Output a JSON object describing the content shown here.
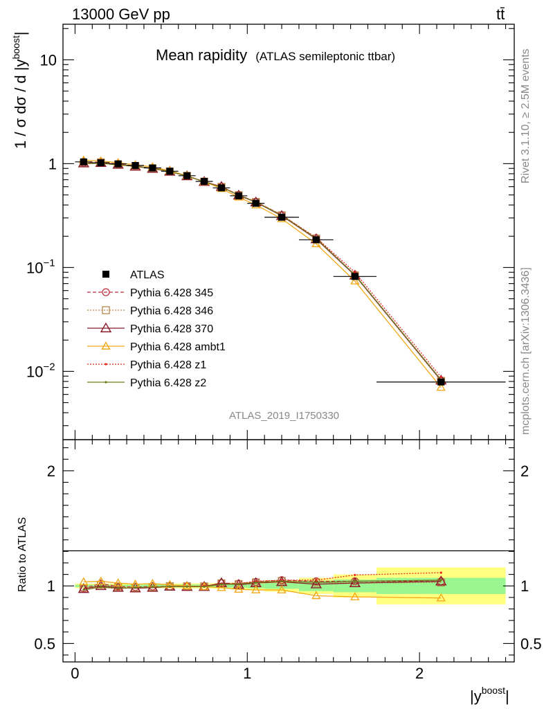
{
  "header": {
    "left": "13000 GeV pp",
    "right": "tt̄"
  },
  "side": {
    "rivet": "Rivet 3.1.10, ≥ 2.5M events",
    "mcplots": "mcplots.cern.ch [arXiv:1306.3436]"
  },
  "chart_data": [
    {
      "type": "line",
      "title": "Mean rapidity",
      "subtitle": "(ATLAS semileptonic ttbar)",
      "analysis_id": "ATLAS_2019_I1750330",
      "ylabel": "1 / σ dσ / d |y^boost|",
      "ylabel_parts": {
        "pre": "1 / σ dσ / d |y",
        "sup": "boost",
        "post": "|"
      },
      "xlabel": "",
      "xlim": [
        -0.07,
        2.55
      ],
      "ylim": [
        0.0022,
        22
      ],
      "yscale": "log",
      "yticks": [
        {
          "v": 10,
          "label": "10"
        },
        {
          "v": 1,
          "label": "1"
        },
        {
          "v": 0.1,
          "label": "10",
          "exp": "−1"
        },
        {
          "v": 0.01,
          "label": "10",
          "exp": "−2"
        }
      ],
      "legend_position": "middle-left",
      "x": [
        0.05,
        0.15,
        0.25,
        0.35,
        0.45,
        0.55,
        0.65,
        0.75,
        0.85,
        0.95,
        1.05,
        1.2,
        1.4,
        1.625,
        2.125
      ],
      "x_edges": [
        0,
        0.1,
        0.2,
        0.3,
        0.4,
        0.5,
        0.6,
        0.7,
        0.8,
        0.9,
        1.0,
        1.1,
        1.3,
        1.5,
        1.75,
        2.5
      ],
      "series": [
        {
          "name": "ATLAS",
          "style": "data",
          "color": "#000000",
          "values": [
            1.04,
            1.02,
            0.995,
            0.96,
            0.91,
            0.845,
            0.765,
            0.675,
            0.585,
            0.49,
            0.415,
            0.305,
            0.185,
            0.082,
            0.0079
          ]
        },
        {
          "name": "Pythia 6.428 345",
          "style": "circle-dashed",
          "color": "#c12e3d",
          "values": [
            1.02,
            1.04,
            0.99,
            0.95,
            0.905,
            0.84,
            0.762,
            0.67,
            0.6,
            0.5,
            0.43,
            0.32,
            0.192,
            0.085,
            0.0082
          ]
        },
        {
          "name": "Pythia 6.428 346",
          "style": "square-dotted",
          "color": "#b8864a",
          "values": [
            1.01,
            1.03,
            0.985,
            0.945,
            0.9,
            0.843,
            0.763,
            0.672,
            0.598,
            0.498,
            0.428,
            0.318,
            0.19,
            0.084,
            0.0081
          ]
        },
        {
          "name": "Pythia 6.428 370",
          "style": "triangle-solid",
          "color": "#8b1a2a",
          "values": [
            1.01,
            1.02,
            0.98,
            0.94,
            0.895,
            0.84,
            0.76,
            0.67,
            0.6,
            0.495,
            0.425,
            0.315,
            0.188,
            0.084,
            0.0082
          ]
        },
        {
          "name": "Pythia 6.428 ambt1",
          "style": "triangle-open-yellow",
          "color": "#f2a818",
          "values": [
            1.08,
            1.06,
            1.02,
            0.975,
            0.93,
            0.855,
            0.765,
            0.67,
            0.575,
            0.475,
            0.4,
            0.295,
            0.169,
            0.074,
            0.007
          ]
        },
        {
          "name": "Pythia 6.428 z1",
          "style": "dot-dotted",
          "color": "#e8251c",
          "values": [
            1.0,
            1.01,
            0.97,
            0.945,
            0.9,
            0.84,
            0.76,
            0.675,
            0.595,
            0.5,
            0.43,
            0.32,
            0.194,
            0.09,
            0.0088
          ]
        },
        {
          "name": "Pythia 6.428 z2",
          "style": "dot-solid",
          "color": "#6e7a1e",
          "values": [
            1.0,
            1.01,
            0.975,
            0.945,
            0.9,
            0.84,
            0.76,
            0.67,
            0.593,
            0.498,
            0.427,
            0.318,
            0.19,
            0.085,
            0.0083
          ]
        }
      ]
    },
    {
      "type": "line",
      "ylabel": "Ratio to ATLAS",
      "xlabel": "|y^boost|",
      "xlabel_parts": {
        "pre": "|y",
        "sup": "boost",
        "post": "|"
      },
      "xlim": [
        -0.07,
        2.55
      ],
      "ylim": [
        0.34,
        2.27
      ],
      "yticks_left": [
        {
          "v": 2,
          "label": "2"
        },
        {
          "v": 1,
          "label": "1"
        },
        {
          "v": 0.5,
          "label": "0.5"
        }
      ],
      "yticks_right": [
        {
          "v": 2,
          "label": "2"
        },
        {
          "v": 1,
          "label": "1"
        },
        {
          "v": 0.5,
          "label": "0.5"
        }
      ],
      "xticks": [
        {
          "v": 0,
          "label": "0"
        },
        {
          "v": 1,
          "label": "1"
        },
        {
          "v": 2,
          "label": "2"
        }
      ],
      "x": [
        0.05,
        0.15,
        0.25,
        0.35,
        0.45,
        0.55,
        0.65,
        0.75,
        0.85,
        0.95,
        1.05,
        1.2,
        1.4,
        1.625,
        2.125
      ],
      "bands": {
        "stat_green": [
          0.01,
          0.01,
          0.01,
          0.01,
          0.012,
          0.012,
          0.012,
          0.012,
          0.015,
          0.015,
          0.02,
          0.025,
          0.045,
          0.055,
          0.07
        ],
        "total_yellow": [
          0.02,
          0.02,
          0.02,
          0.02,
          0.02,
          0.02,
          0.022,
          0.022,
          0.025,
          0.03,
          0.035,
          0.05,
          0.07,
          0.1,
          0.16
        ]
      },
      "series": [
        {
          "name": "Pythia 6.428 345",
          "style": "circle-dashed",
          "color": "#c12e3d",
          "values": [
            0.98,
            1.02,
            0.995,
            0.99,
            0.995,
            0.995,
            0.995,
            0.995,
            1.025,
            1.02,
            1.035,
            1.05,
            1.04,
            1.04,
            1.04
          ]
        },
        {
          "name": "Pythia 6.428 346",
          "style": "square-dotted",
          "color": "#b8864a",
          "values": [
            0.975,
            1.01,
            0.99,
            0.985,
            0.99,
            0.998,
            0.997,
            0.996,
            1.022,
            1.016,
            1.031,
            1.043,
            1.03,
            1.025,
            1.03
          ]
        },
        {
          "name": "Pythia 6.428 370",
          "style": "triangle-solid",
          "color": "#8b1a2a",
          "values": [
            0.975,
            1.0,
            0.985,
            0.98,
            0.985,
            0.995,
            0.993,
            0.993,
            1.025,
            1.01,
            1.025,
            1.035,
            1.015,
            1.025,
            1.04
          ]
        },
        {
          "name": "Pythia 6.428 ambt1",
          "style": "triangle-open-yellow",
          "color": "#f2a818",
          "values": [
            1.035,
            1.04,
            1.025,
            1.015,
            1.02,
            1.01,
            1.0,
            0.993,
            0.985,
            0.97,
            0.965,
            0.965,
            0.915,
            0.905,
            0.895
          ]
        },
        {
          "name": "Pythia 6.428 z1",
          "style": "dot-dotted",
          "color": "#e8251c",
          "values": [
            0.965,
            0.99,
            0.975,
            0.985,
            0.99,
            0.994,
            0.994,
            1.0,
            1.015,
            1.02,
            1.04,
            1.05,
            1.05,
            1.095,
            1.115
          ]
        },
        {
          "name": "Pythia 6.428 z2",
          "style": "dot-solid",
          "color": "#6e7a1e",
          "values": [
            0.965,
            0.99,
            0.98,
            0.985,
            0.99,
            0.994,
            0.994,
            0.993,
            1.013,
            1.016,
            1.03,
            1.04,
            1.03,
            1.04,
            1.05
          ]
        }
      ]
    }
  ]
}
